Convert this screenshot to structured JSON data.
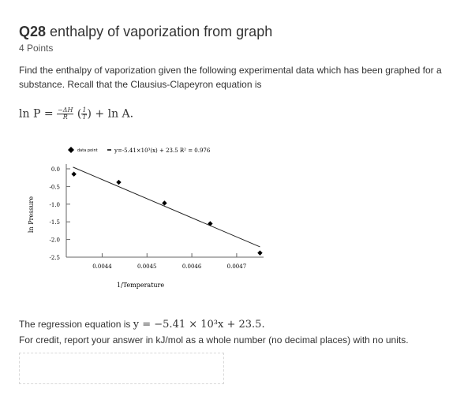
{
  "question": {
    "number": "Q28",
    "title": "enthalpy of vaporization from graph",
    "points": "4 Points",
    "prompt": "Find the enthalpy of vaporization given the following experimental data which has been graphed for a substance. Recall that the Clausius-Clapeyron equation is",
    "formula": {
      "lhs": "ln P =",
      "frac1_num": "−ΔH",
      "frac1_den": "R",
      "frac2_num": "1",
      "frac2_den": "T",
      "rhs": "+ ln A."
    }
  },
  "chart_data": {
    "type": "scatter",
    "title": "",
    "xlabel": "1/Temperature",
    "ylabel": "ln Pressure",
    "legend": {
      "marker_label": "data point",
      "trendline_label": "y=-5.41×10³(x) + 23.5 R² = 0.976"
    },
    "x_ticks": [
      "0.0044",
      "0.0045",
      "0.0046",
      "0.0047"
    ],
    "y_ticks": [
      "0.0",
      "-0.5",
      "-1.0",
      "-1.5",
      "-2.0",
      "-2.5"
    ],
    "xlim": [
      0.00432,
      0.00476
    ],
    "ylim": [
      -2.5,
      0.0
    ],
    "points": [
      {
        "x": 0.004337,
        "y": -0.15
      },
      {
        "x": 0.004437,
        "y": -0.38
      },
      {
        "x": 0.004539,
        "y": -0.97
      },
      {
        "x": 0.004641,
        "y": -1.55
      },
      {
        "x": 0.004752,
        "y": -2.38
      }
    ],
    "trendline": {
      "slope": -5410,
      "intercept": 23.5,
      "r2": 0.976
    }
  },
  "regression": {
    "text": "The regression equation is",
    "equation": "y = −5.41 × 10³x + 23.5."
  },
  "instructions": "For credit, report your answer in kJ/mol as a whole number (no decimal places) with no units.",
  "answer": {
    "value": "",
    "placeholder": ""
  }
}
